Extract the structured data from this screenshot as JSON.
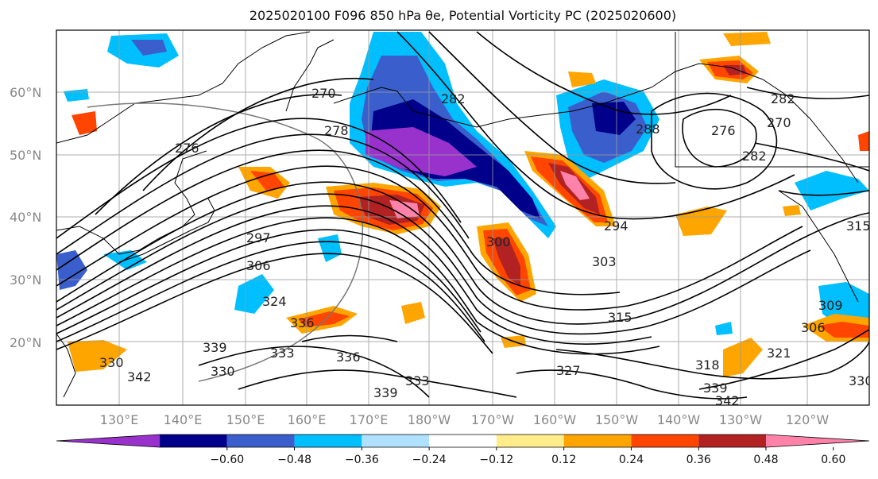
{
  "title": "2025020100 F096 850 hPa θe, Potential Vorticity PC (2025020600)",
  "lat_labels": [
    "60°N",
    "50°N",
    "40°N",
    "30°N",
    "20°N"
  ],
  "lon_labels": [
    "130°E",
    "140°E",
    "150°E",
    "160°E",
    "170°E",
    "180°W",
    "170°W",
    "160°W",
    "150°W",
    "140°W",
    "130°W",
    "120°W"
  ],
  "contour_labels": [
    "270",
    "276",
    "278",
    "282",
    "288",
    "276",
    "282",
    "270",
    "282",
    "294",
    "297",
    "306",
    "300",
    "303",
    "315",
    "324",
    "336",
    "339",
    "330",
    "333",
    "336",
    "330",
    "342",
    "339",
    "333",
    "327",
    "318",
    "339",
    "342",
    "321",
    "309",
    "306",
    "330",
    "315"
  ],
  "colorbar": {
    "colors": [
      "#9932cc",
      "#00008b",
      "#3a5fcd",
      "#00bfff",
      "#b0e2ff",
      "#ffffff",
      "#ffec8b",
      "#ffa500",
      "#ff4500",
      "#b22222",
      "#ff82ab"
    ],
    "tick_labels": [
      "−0.60",
      "−0.48",
      "−0.36",
      "−0.24",
      "−0.12",
      "0.12",
      "0.24",
      "0.36",
      "0.48",
      "0.60"
    ]
  }
}
